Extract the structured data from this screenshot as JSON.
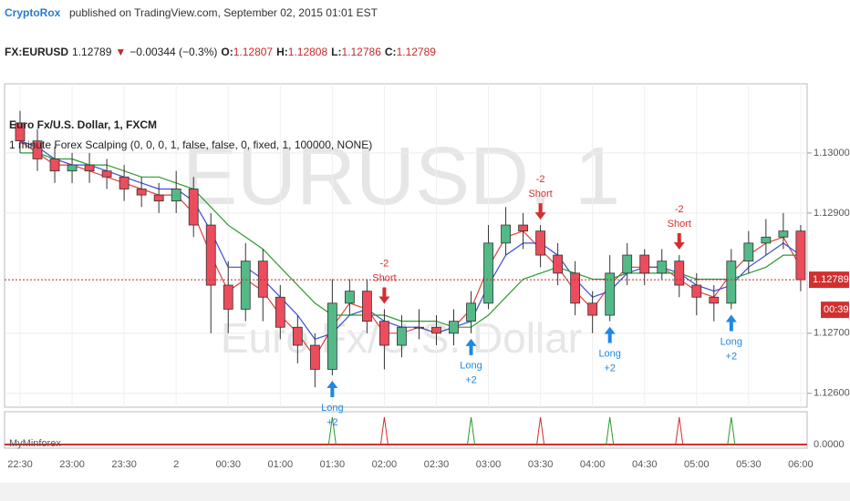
{
  "header": {
    "author": "CryptoRox",
    "published": "published on TradingView.com, September 02, 2015 01:01 EST",
    "symbol": "FX:EURUSD",
    "last": "1.12789",
    "arrow": "▼",
    "change": "−0.00344 (−0.3%)",
    "ohlc": [
      {
        "label": "O:",
        "value": "1.12807"
      },
      {
        "label": "H:",
        "value": "1.12808"
      },
      {
        "label": "L:",
        "value": "1.12786"
      },
      {
        "label": "C:",
        "value": "1.12789"
      }
    ]
  },
  "chart_data": {
    "type": "candlestick",
    "title": "Euro Fx/U.S. Dollar, 1, FXCM",
    "study": "1 minute Forex Scalping (0, 0, 0, 1, false, false, 0, fixed, 1, 100000, NONE)",
    "watermark": "EURUSD, 1",
    "watermark_sub": "Euro Fx/U.S. Dollar",
    "countdown": "00:39",
    "categories": [
      "22:30",
      null,
      null,
      "23:00",
      null,
      null,
      "23:30",
      null,
      null,
      "2",
      null,
      null,
      "00:30",
      null,
      null,
      "01:00",
      null,
      null,
      "01:30",
      null,
      null,
      "02:00",
      null,
      null,
      "02:30",
      null,
      null,
      "03:00",
      null,
      null,
      "03:30",
      null,
      null,
      "04:00",
      null,
      null,
      "04:30",
      null,
      null,
      "05:00",
      null,
      null,
      "05:30",
      null,
      null,
      "06:00"
    ],
    "open": [
      1.1305,
      1.1302,
      1.1299,
      1.1297,
      1.1298,
      1.1297,
      1.1296,
      1.1294,
      1.1293,
      1.1292,
      1.1294,
      1.1288,
      1.1278,
      1.1274,
      1.1282,
      1.1276,
      1.1271,
      1.1268,
      1.1264,
      1.1275,
      1.1277,
      1.1272,
      1.1268,
      1.1271,
      1.1271,
      1.127,
      1.1272,
      1.1275,
      1.1285,
      1.1288,
      1.1287,
      1.1283,
      1.128,
      1.1275,
      1.1273,
      1.128,
      1.1283,
      1.128,
      1.1282,
      1.1278,
      1.1276,
      1.1275,
      1.1282,
      1.1285,
      1.1286,
      1.1287
    ],
    "high": [
      1.1307,
      1.1304,
      1.1301,
      1.13,
      1.13,
      1.1299,
      1.1298,
      1.1296,
      1.1295,
      1.1297,
      1.1296,
      1.129,
      1.1282,
      1.1285,
      1.1284,
      1.1278,
      1.1273,
      1.127,
      1.1279,
      1.1279,
      1.1279,
      1.1274,
      1.1273,
      1.1274,
      1.1273,
      1.1274,
      1.1277,
      1.1288,
      1.1291,
      1.129,
      1.1288,
      1.1285,
      1.1282,
      1.1277,
      1.1283,
      1.1285,
      1.1284,
      1.1284,
      1.1283,
      1.128,
      1.1278,
      1.1284,
      1.1287,
      1.1289,
      1.129,
      1.1288
    ],
    "low": [
      1.13,
      1.1297,
      1.1295,
      1.1295,
      1.1295,
      1.1294,
      1.1292,
      1.1291,
      1.129,
      1.129,
      1.1286,
      1.127,
      1.127,
      1.1272,
      1.1272,
      1.1269,
      1.1265,
      1.1261,
      1.1263,
      1.1273,
      1.127,
      1.1264,
      1.1266,
      1.1269,
      1.1268,
      1.1268,
      1.127,
      1.1274,
      1.1283,
      1.1284,
      1.1281,
      1.1278,
      1.1273,
      1.127,
      1.1272,
      1.1278,
      1.1278,
      1.1279,
      1.1276,
      1.1273,
      1.1272,
      1.1274,
      1.128,
      1.1283,
      1.1284,
      1.1277
    ],
    "close": [
      1.1302,
      1.1299,
      1.1297,
      1.1298,
      1.1297,
      1.1296,
      1.1294,
      1.1293,
      1.1292,
      1.1294,
      1.1288,
      1.1278,
      1.1274,
      1.1282,
      1.1276,
      1.1271,
      1.1268,
      1.1264,
      1.1275,
      1.1277,
      1.1272,
      1.1268,
      1.1271,
      1.1271,
      1.127,
      1.1272,
      1.1275,
      1.1285,
      1.1288,
      1.1287,
      1.1283,
      1.128,
      1.1275,
      1.1273,
      1.128,
      1.1283,
      1.128,
      1.1282,
      1.1278,
      1.1276,
      1.1275,
      1.1282,
      1.1285,
      1.1286,
      1.1287,
      1.12789
    ],
    "up_color": "#53b987",
    "down_color": "#eb4d5c",
    "series": [
      {
        "color": "#e04040",
        "values": [
          1.1302,
          1.13,
          1.1298,
          1.1298,
          1.1297,
          1.1296,
          1.1295,
          1.1294,
          1.1293,
          1.1293,
          1.129,
          1.1283,
          1.1277,
          1.1279,
          1.1277,
          1.1273,
          1.127,
          1.1266,
          1.1271,
          1.1275,
          1.1274,
          1.127,
          1.127,
          1.1271,
          1.127,
          1.1271,
          1.1274,
          1.1281,
          1.1286,
          1.1287,
          1.1284,
          1.1281,
          1.1277,
          1.1274,
          1.1278,
          1.1281,
          1.1281,
          1.1281,
          1.1279,
          1.1277,
          1.1276,
          1.128,
          1.1283,
          1.1285,
          1.1286,
          1.1281
        ]
      },
      {
        "color": "#3a4fd8",
        "values": [
          1.1302,
          1.1301,
          1.1299,
          1.1298,
          1.1298,
          1.1297,
          1.1296,
          1.1295,
          1.1294,
          1.1294,
          1.1292,
          1.1287,
          1.1281,
          1.1281,
          1.1279,
          1.1276,
          1.1273,
          1.1269,
          1.127,
          1.1273,
          1.1274,
          1.1272,
          1.1271,
          1.1271,
          1.127,
          1.1271,
          1.1272,
          1.1278,
          1.1283,
          1.1285,
          1.1285,
          1.1283,
          1.1279,
          1.1276,
          1.1277,
          1.128,
          1.1281,
          1.1281,
          1.128,
          1.1278,
          1.1277,
          1.1278,
          1.1281,
          1.1283,
          1.1285,
          1.1283
        ]
      },
      {
        "color": "#2e9a2e",
        "values": [
          1.13,
          1.13,
          1.1299,
          1.1299,
          1.1298,
          1.1298,
          1.1297,
          1.1296,
          1.1296,
          1.1295,
          1.1294,
          1.1291,
          1.1288,
          1.1286,
          1.1284,
          1.1281,
          1.1278,
          1.1275,
          1.1273,
          1.1273,
          1.1273,
          1.1273,
          1.1272,
          1.1272,
          1.1272,
          1.1271,
          1.1271,
          1.1273,
          1.1276,
          1.1279,
          1.128,
          1.1281,
          1.128,
          1.1279,
          1.1279,
          1.128,
          1.128,
          1.128,
          1.128,
          1.1279,
          1.1279,
          1.1279,
          1.128,
          1.1281,
          1.1283,
          1.1283
        ]
      }
    ],
    "signals": [
      {
        "label": "Long",
        "qty": "+2",
        "index": 18
      },
      {
        "label": "Short",
        "qty": "-2",
        "index": 21
      },
      {
        "label": "Long",
        "qty": "+2",
        "index": 26
      },
      {
        "label": "Short",
        "qty": "-2",
        "index": 30
      },
      {
        "label": "Long",
        "qty": "+2",
        "index": 34
      },
      {
        "label": "Short",
        "qty": "-2",
        "index": 38
      },
      {
        "label": "Long",
        "qty": "+2",
        "index": 41
      }
    ],
    "ylim": [
      1.12577,
      1.13115
    ],
    "yticks": [
      {
        "value": 1.126,
        "label": "1.12600"
      },
      {
        "value": 1.127,
        "label": "1.12700"
      },
      {
        "value": 1.129,
        "label": "1.12900"
      },
      {
        "value": 1.13,
        "label": "1.13000"
      }
    ],
    "lower": {
      "title": "MyMinforex",
      "yticks": [
        {
          "value": 0,
          "label": "0.0000"
        }
      ]
    }
  }
}
